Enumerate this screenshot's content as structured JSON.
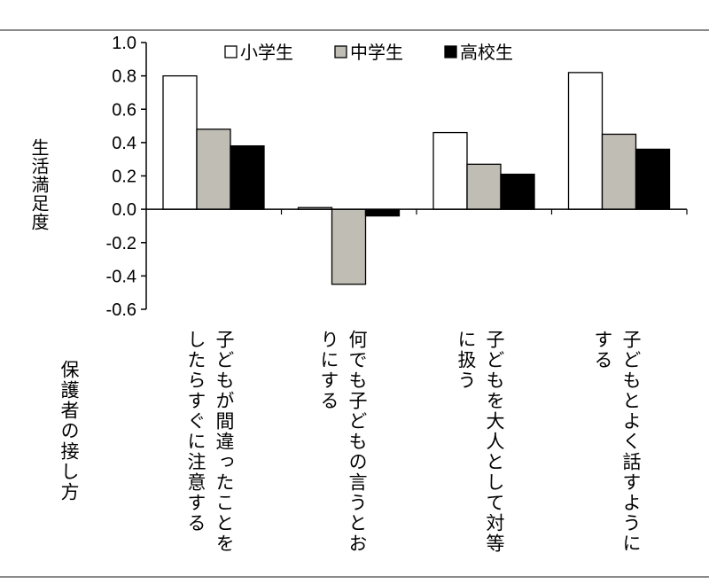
{
  "chart_data": {
    "type": "bar",
    "title": "",
    "xlabel": "保護者の接し方",
    "ylabel": "生活満足度",
    "ylim": [
      -0.6,
      1.0
    ],
    "yticks": [
      "1.0",
      "0.8",
      "0.6",
      "0.4",
      "0.2",
      "0.0",
      "-0.2",
      "-0.4",
      "-0.6"
    ],
    "ytick_values": [
      1.0,
      0.8,
      0.6,
      0.4,
      0.2,
      0.0,
      -0.2,
      -0.4,
      -0.6
    ],
    "categories": [
      "子どもが間違ったことをしたらすぐに注意する",
      "何でも子どもの言うとおりにする",
      "子どもを大人として対等に扱う",
      "子どもとよく話すようにする"
    ],
    "category_lines": [
      [
        "子どもが間違ったことを",
        "したらすぐに注意する"
      ],
      [
        "何でも子どもの言うとお",
        "りにする"
      ],
      [
        "子どもを大人として対等",
        "に扱う"
      ],
      [
        "子どもとよく話すように",
        "する"
      ]
    ],
    "series": [
      {
        "name": "小学生",
        "color": "#ffffff",
        "values": [
          0.8,
          0.01,
          0.46,
          0.82
        ]
      },
      {
        "name": "中学生",
        "color": "#c0bdb4",
        "values": [
          0.48,
          -0.45,
          0.27,
          0.45
        ]
      },
      {
        "name": "高校生",
        "color": "#000000",
        "values": [
          0.38,
          -0.04,
          0.21,
          0.36
        ]
      }
    ],
    "legend_position": "top-center",
    "grid": false
  }
}
